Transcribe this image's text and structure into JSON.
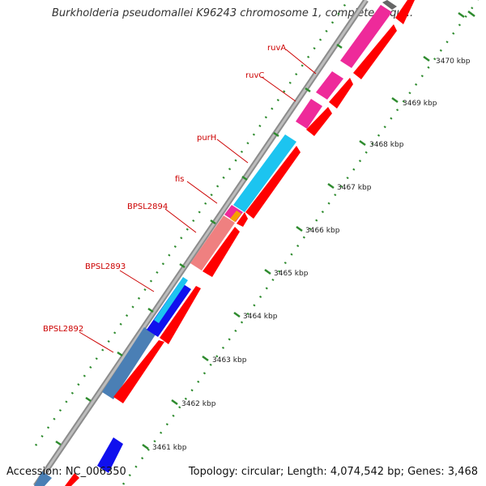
{
  "title": "Burkholderia pseudomallei K96243 chromosome 1, complete sequ...",
  "accession": "Accession: NC_006350",
  "topology": "Topology: circular; Length: 4,074,542 bp; Genes: 3,468",
  "colors": {
    "backbone": "#9e9e9e",
    "forward_strand": "#ff0000",
    "label": "#cc0000",
    "tick": "#2e8b2e",
    "feature_pink": "#ee2a9a",
    "feature_cyan": "#1cc4f0",
    "feature_salmon": "#ef8080",
    "feature_steelblue": "#4a7fb5",
    "feature_blue": "#1010ee",
    "feature_orange": "#f5a000"
  },
  "ticks": [
    {
      "label": "3461 kbp"
    },
    {
      "label": "3462 kbp"
    },
    {
      "label": "3463 kbp"
    },
    {
      "label": "3464 kbp"
    },
    {
      "label": "3465 kbp"
    },
    {
      "label": "3466 kbp"
    },
    {
      "label": "3467 kbp"
    },
    {
      "label": "3468 kbp"
    },
    {
      "label": "3469 kbp"
    },
    {
      "label": "3470 kbp"
    }
  ],
  "genes": [
    {
      "label": "ruvA"
    },
    {
      "label": "ruvC"
    },
    {
      "label": "purH"
    },
    {
      "label": "fis"
    },
    {
      "label": "BPSL2894"
    },
    {
      "label": "BPSL2893"
    },
    {
      "label": "BPSL2892"
    }
  ]
}
